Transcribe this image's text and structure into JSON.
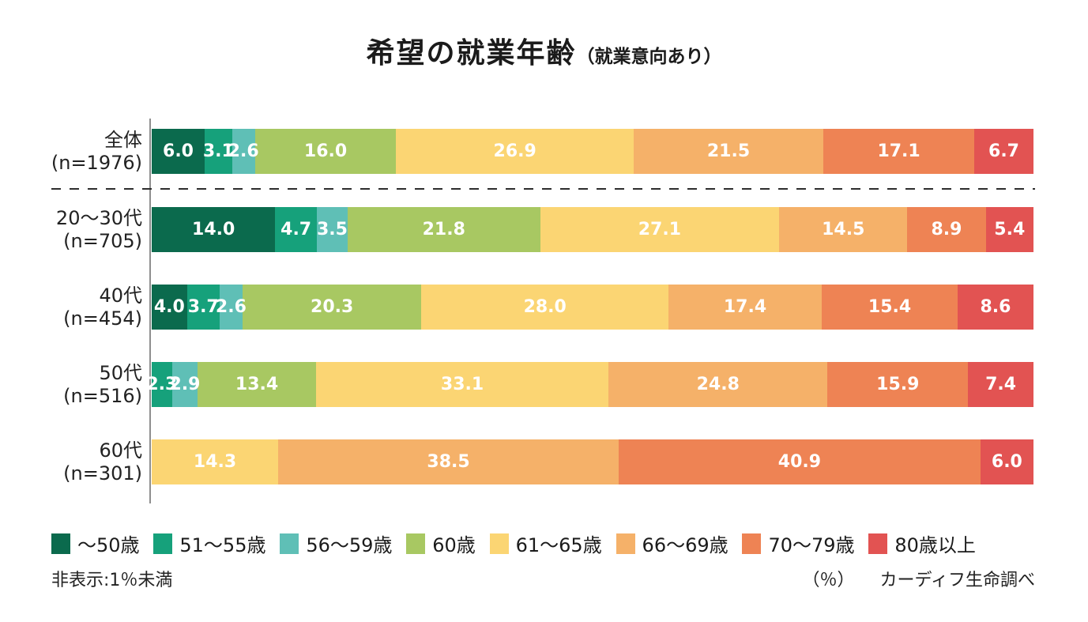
{
  "title": {
    "main": "希望の就業年齢",
    "sub": "（就業意向あり）"
  },
  "footnote": "非表示:1％未満",
  "unit_label": "（％）",
  "source": "カーディフ生命調べ",
  "chart_data": {
    "type": "bar",
    "orientation": "horizontal",
    "stacked": true,
    "unit": "%",
    "value_range": [
      0,
      100
    ],
    "legend_position": "bottom",
    "hidden_values_note": "segments under 1% are not displayed (非表示:1％未満)",
    "categories": [
      {
        "label": "全体",
        "n": "(n=1976)"
      },
      {
        "label": "20～30代",
        "n": "(n=705)"
      },
      {
        "label": "40代",
        "n": "(n=454)"
      },
      {
        "label": "50代",
        "n": "(n=516)"
      },
      {
        "label": "60代",
        "n": "(n=301)"
      }
    ],
    "series": [
      {
        "name": "～50歳",
        "color": "#0b6a4d",
        "values": [
          6.0,
          14.0,
          4.0,
          null,
          null
        ]
      },
      {
        "name": "51～55歳",
        "color": "#16a17b",
        "values": [
          3.1,
          4.7,
          3.7,
          2.3,
          null
        ]
      },
      {
        "name": "56～59歳",
        "color": "#5fbfb6",
        "values": [
          2.6,
          3.5,
          2.6,
          2.9,
          null
        ]
      },
      {
        "name": "60歳",
        "color": "#a8c862",
        "values": [
          16.0,
          21.8,
          20.3,
          13.4,
          null
        ]
      },
      {
        "name": "61～65歳",
        "color": "#fbd573",
        "values": [
          26.9,
          27.1,
          28.0,
          33.1,
          14.3
        ]
      },
      {
        "name": "66～69歳",
        "color": "#f5b169",
        "values": [
          21.5,
          14.5,
          17.4,
          24.8,
          38.5
        ]
      },
      {
        "name": "70～79歳",
        "color": "#ee8354",
        "values": [
          17.1,
          8.9,
          15.4,
          15.9,
          40.9
        ]
      },
      {
        "name": "80歳以上",
        "color": "#e25352",
        "values": [
          6.7,
          5.4,
          8.6,
          7.4,
          6.0
        ]
      }
    ]
  }
}
